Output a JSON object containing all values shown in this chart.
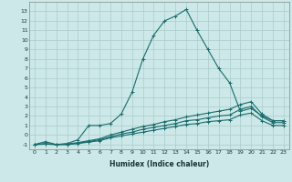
{
  "title": "",
  "xlabel": "Humidex (Indice chaleur)",
  "bg_color": "#cce8e8",
  "grid_color": "#aacccc",
  "line_color": "#1a6b6b",
  "xlim": [
    -0.5,
    23.5
  ],
  "ylim": [
    -1.5,
    14.0
  ],
  "xticks": [
    0,
    1,
    2,
    3,
    4,
    5,
    6,
    7,
    8,
    9,
    10,
    11,
    12,
    13,
    14,
    15,
    16,
    17,
    18,
    19,
    20,
    21,
    22,
    23
  ],
  "yticks": [
    -1,
    0,
    1,
    2,
    3,
    4,
    5,
    6,
    7,
    8,
    9,
    10,
    11,
    12,
    13
  ],
  "series": [
    {
      "x": [
        0,
        1,
        2,
        3,
        4,
        5,
        6,
        7,
        8,
        9,
        10,
        11,
        12,
        13,
        14,
        15,
        16,
        17,
        18,
        19,
        20,
        21,
        22,
        23
      ],
      "y": [
        -1,
        -0.7,
        -1,
        -0.9,
        -0.5,
        1.0,
        1.0,
        1.2,
        2.2,
        4.5,
        8.0,
        10.5,
        12.0,
        12.5,
        13.2,
        11.0,
        9.0,
        7.0,
        5.5,
        2.5,
        2.8,
        2.0,
        1.5,
        1.5
      ]
    },
    {
      "x": [
        0,
        1,
        2,
        3,
        4,
        5,
        6,
        7,
        8,
        9,
        10,
        11,
        12,
        13,
        14,
        15,
        16,
        17,
        18,
        19,
        20,
        21,
        22,
        23
      ],
      "y": [
        -1,
        -0.9,
        -1,
        -0.95,
        -0.8,
        -0.6,
        -0.4,
        0.0,
        0.3,
        0.6,
        0.9,
        1.1,
        1.4,
        1.6,
        1.9,
        2.1,
        2.3,
        2.5,
        2.7,
        3.2,
        3.5,
        2.2,
        1.5,
        1.5
      ]
    },
    {
      "x": [
        0,
        1,
        2,
        3,
        4,
        5,
        6,
        7,
        8,
        9,
        10,
        11,
        12,
        13,
        14,
        15,
        16,
        17,
        18,
        19,
        20,
        21,
        22,
        23
      ],
      "y": [
        -1,
        -0.95,
        -1,
        -1.0,
        -0.85,
        -0.7,
        -0.5,
        -0.2,
        0.1,
        0.3,
        0.6,
        0.8,
        1.0,
        1.2,
        1.5,
        1.6,
        1.8,
        2.0,
        2.1,
        2.7,
        3.0,
        1.9,
        1.3,
        1.3
      ]
    },
    {
      "x": [
        0,
        1,
        2,
        3,
        4,
        5,
        6,
        7,
        8,
        9,
        10,
        11,
        12,
        13,
        14,
        15,
        16,
        17,
        18,
        19,
        20,
        21,
        22,
        23
      ],
      "y": [
        -1,
        -0.95,
        -1,
        -1.0,
        -0.9,
        -0.75,
        -0.6,
        -0.3,
        -0.1,
        0.1,
        0.3,
        0.5,
        0.7,
        0.9,
        1.1,
        1.2,
        1.4,
        1.5,
        1.6,
        2.1,
        2.3,
        1.5,
        1.0,
        1.0
      ]
    }
  ]
}
